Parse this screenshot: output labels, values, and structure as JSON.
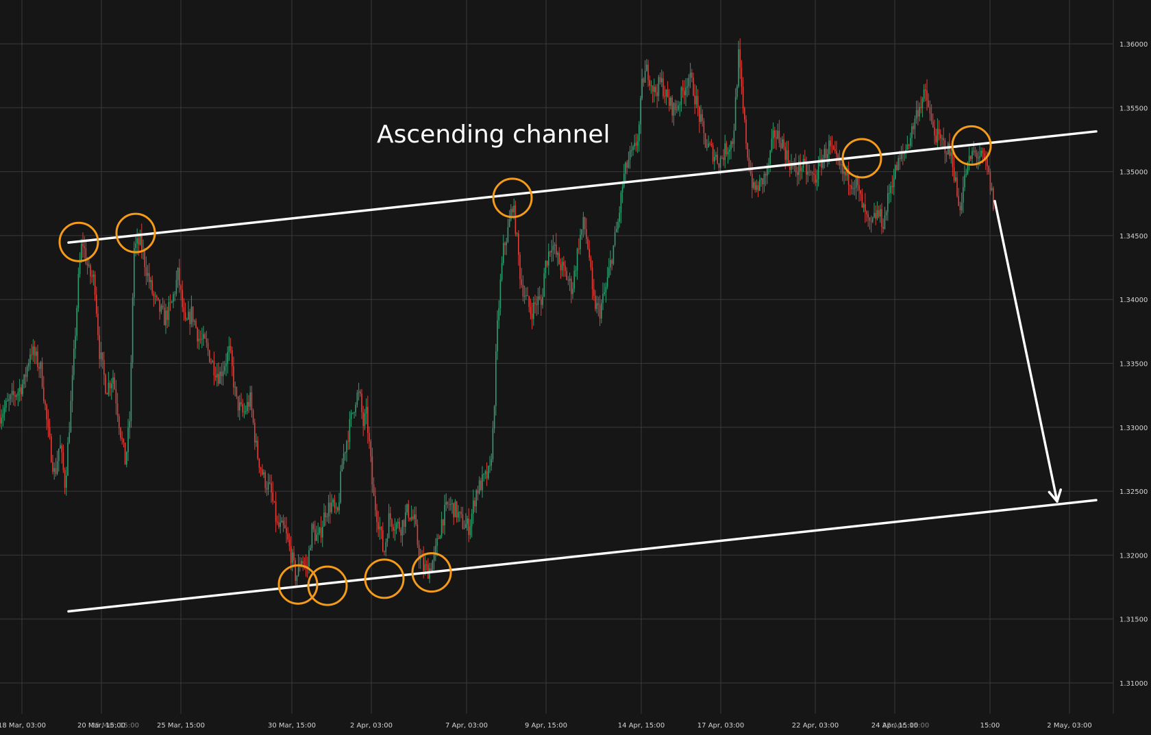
{
  "chart_data": {
    "type": "candlestick",
    "annotation": "Ascending channel",
    "y_ticks": [
      "1.36000",
      "1.35500",
      "1.35000",
      "1.34500",
      "1.34000",
      "1.33500",
      "1.33000",
      "1.32500",
      "1.32000",
      "1.31500",
      "1.31000"
    ],
    "x_ticks": [
      "18 Mar, 03:00",
      "20 Mar, 15:00",
      "25 Mar, 15:00",
      "30 Mar, 15:00",
      "2 Apr, 03:00",
      "7 Apr, 03:00",
      "9 Apr, 15:00",
      "14 Apr, 15:00",
      "17 Apr, 03:00",
      "22 Apr, 03:00",
      "24 Apr, 15:00",
      "15:00",
      "2 May, 03:00"
    ],
    "ylim": [
      1.3065,
      1.363
    ],
    "price_path": [
      [
        0,
        1.331
      ],
      [
        0.035,
        1.3335
      ],
      [
        0.045,
        1.3362
      ],
      [
        0.06,
        1.3345
      ],
      [
        0.07,
        1.3296
      ],
      [
        0.08,
        1.3262
      ],
      [
        0.087,
        1.3288
      ],
      [
        0.095,
        1.3255
      ],
      [
        0.105,
        1.333
      ],
      [
        0.115,
        1.342
      ],
      [
        0.12,
        1.3447
      ],
      [
        0.13,
        1.342
      ],
      [
        0.138,
        1.3415
      ],
      [
        0.145,
        1.336
      ],
      [
        0.155,
        1.333
      ],
      [
        0.165,
        1.334
      ],
      [
        0.175,
        1.33
      ],
      [
        0.183,
        1.3272
      ],
      [
        0.19,
        1.331
      ],
      [
        0.195,
        1.344
      ],
      [
        0.205,
        1.3445
      ],
      [
        0.215,
        1.342
      ],
      [
        0.225,
        1.34
      ],
      [
        0.24,
        1.3385
      ],
      [
        0.25,
        1.3395
      ],
      [
        0.26,
        1.342
      ],
      [
        0.27,
        1.3378
      ],
      [
        0.28,
        1.339
      ],
      [
        0.29,
        1.337
      ],
      [
        0.3,
        1.3365
      ],
      [
        0.31,
        1.335
      ],
      [
        0.32,
        1.334
      ],
      [
        0.335,
        1.336
      ],
      [
        0.345,
        1.332
      ],
      [
        0.355,
        1.331
      ],
      [
        0.365,
        1.3322
      ],
      [
        0.375,
        1.328
      ],
      [
        0.385,
        1.326
      ],
      [
        0.395,
        1.325
      ],
      [
        0.405,
        1.3222
      ],
      [
        0.415,
        1.322
      ],
      [
        0.425,
        1.32
      ],
      [
        0.432,
        1.3182
      ],
      [
        0.44,
        1.3198
      ],
      [
        0.448,
        1.3188
      ],
      [
        0.455,
        1.322
      ],
      [
        0.465,
        1.3212
      ],
      [
        0.475,
        1.3235
      ],
      [
        0.485,
        1.324
      ],
      [
        0.492,
        1.3228
      ],
      [
        0.5,
        1.3275
      ],
      [
        0.51,
        1.33
      ],
      [
        0.52,
        1.3325
      ],
      [
        0.525,
        1.3325
      ],
      [
        0.53,
        1.3302
      ],
      [
        0.535,
        1.331
      ],
      [
        0.54,
        1.328
      ],
      [
        0.545,
        1.3245
      ],
      [
        0.555,
        1.322
      ],
      [
        0.56,
        1.32
      ],
      [
        0.568,
        1.323
      ],
      [
        0.575,
        1.3225
      ],
      [
        0.585,
        1.3222
      ],
      [
        0.595,
        1.3235
      ],
      [
        0.605,
        1.3226
      ],
      [
        0.612,
        1.32
      ],
      [
        0.618,
        1.319
      ],
      [
        0.626,
        1.3188
      ],
      [
        0.635,
        1.32
      ],
      [
        0.645,
        1.3228
      ],
      [
        0.655,
        1.324
      ],
      [
        0.665,
        1.3235
      ],
      [
        0.675,
        1.3225
      ],
      [
        0.685,
        1.3222
      ],
      [
        0.695,
        1.325
      ],
      [
        0.705,
        1.3258
      ],
      [
        0.715,
        1.3265
      ],
      [
        0.72,
        1.33
      ],
      [
        0.725,
        1.337
      ],
      [
        0.73,
        1.341
      ],
      [
        0.735,
        1.344
      ],
      [
        0.742,
        1.3455
      ],
      [
        0.748,
        1.3475
      ],
      [
        0.752,
        1.346
      ],
      [
        0.76,
        1.3415
      ],
      [
        0.768,
        1.34
      ],
      [
        0.775,
        1.339
      ],
      [
        0.785,
        1.34
      ],
      [
        0.79,
        1.3395
      ],
      [
        0.795,
        1.3425
      ],
      [
        0.805,
        1.3445
      ],
      [
        0.815,
        1.343
      ],
      [
        0.825,
        1.342
      ],
      [
        0.835,
        1.3408
      ],
      [
        0.845,
        1.3445
      ],
      [
        0.852,
        1.346
      ],
      [
        0.86,
        1.3435
      ],
      [
        0.865,
        1.34
      ],
      [
        0.87,
        1.3395
      ],
      [
        0.875,
        1.339
      ],
      [
        0.885,
        1.341
      ],
      [
        0.895,
        1.344
      ],
      [
        0.902,
        1.346
      ],
      [
        0.91,
        1.3495
      ],
      [
        0.918,
        1.351
      ],
      [
        0.925,
        1.3515
      ],
      [
        0.932,
        1.353
      ],
      [
        0.938,
        1.3572
      ],
      [
        0.945,
        1.358
      ],
      [
        0.955,
        1.3562
      ],
      [
        0.965,
        1.357
      ],
      [
        0.975,
        1.3555
      ],
      [
        0.985,
        1.3548
      ],
      [
        0.995,
        1.356
      ],
      [
        1.005,
        1.3575
      ],
      [
        1.012,
        1.3565
      ],
      [
        1.02,
        1.3545
      ],
      [
        1.03,
        1.3522
      ],
      [
        1.04,
        1.3515
      ],
      [
        1.05,
        1.3508
      ],
      [
        1.06,
        1.3518
      ],
      [
        1.07,
        1.3525
      ],
      [
        1.078,
        1.359
      ],
      [
        1.085,
        1.3545
      ],
      [
        1.092,
        1.351
      ],
      [
        1.1,
        1.3485
      ],
      [
        1.11,
        1.349
      ],
      [
        1.12,
        1.35
      ],
      [
        1.13,
        1.353
      ],
      [
        1.14,
        1.3525
      ],
      [
        1.15,
        1.351
      ],
      [
        1.16,
        1.35
      ],
      [
        1.17,
        1.3505
      ],
      [
        1.18,
        1.3498
      ],
      [
        1.19,
        1.3495
      ],
      [
        1.2,
        1.351
      ],
      [
        1.21,
        1.352
      ],
      [
        1.22,
        1.3508
      ],
      [
        1.23,
        1.3498
      ],
      [
        1.24,
        1.3495
      ],
      [
        1.25,
        1.349
      ],
      [
        1.26,
        1.347
      ],
      [
        1.27,
        1.3455
      ],
      [
        1.28,
        1.3468
      ],
      [
        1.29,
        1.346
      ],
      [
        1.3,
        1.349
      ],
      [
        1.31,
        1.3505
      ],
      [
        1.32,
        1.3515
      ],
      [
        1.33,
        1.353
      ],
      [
        1.34,
        1.355
      ],
      [
        1.35,
        1.356
      ],
      [
        1.355,
        1.3552
      ],
      [
        1.36,
        1.3535
      ],
      [
        1.37,
        1.3525
      ],
      [
        1.38,
        1.352
      ],
      [
        1.39,
        1.351
      ],
      [
        1.4,
        1.347
      ],
      [
        1.41,
        1.35
      ],
      [
        1.42,
        1.3515
      ],
      [
        1.43,
        1.3512
      ],
      [
        1.44,
        1.3505
      ],
      [
        1.45,
        1.3475
      ]
    ],
    "channel": {
      "upper": {
        "from": [
          0.1,
          1.34445
        ],
        "to": [
          1.6,
          1.35315
        ]
      },
      "lower": {
        "from": [
          0.1,
          1.3156
        ],
        "to": [
          1.6,
          1.3243
        ]
      }
    },
    "touch_points": [
      [
        0.115,
        1.3445
      ],
      [
        0.198,
        1.3452
      ],
      [
        0.748,
        1.34795
      ],
      [
        1.258,
        1.35105
      ],
      [
        1.418,
        1.35205
      ],
      [
        0.435,
        1.3177
      ],
      [
        0.478,
        1.3176
      ],
      [
        0.561,
        1.31815
      ],
      [
        0.63,
        1.31865
      ]
    ],
    "projection_arrow": {
      "from": [
        1.452,
        1.3477
      ],
      "to": [
        1.543,
        1.3242
      ]
    },
    "colors": {
      "background": "#161616",
      "grid": "#3a3a3a",
      "bull": "#2f9f72",
      "bear": "#e0403a",
      "circle": "#f59b1a",
      "line": "#ffffff"
    }
  }
}
